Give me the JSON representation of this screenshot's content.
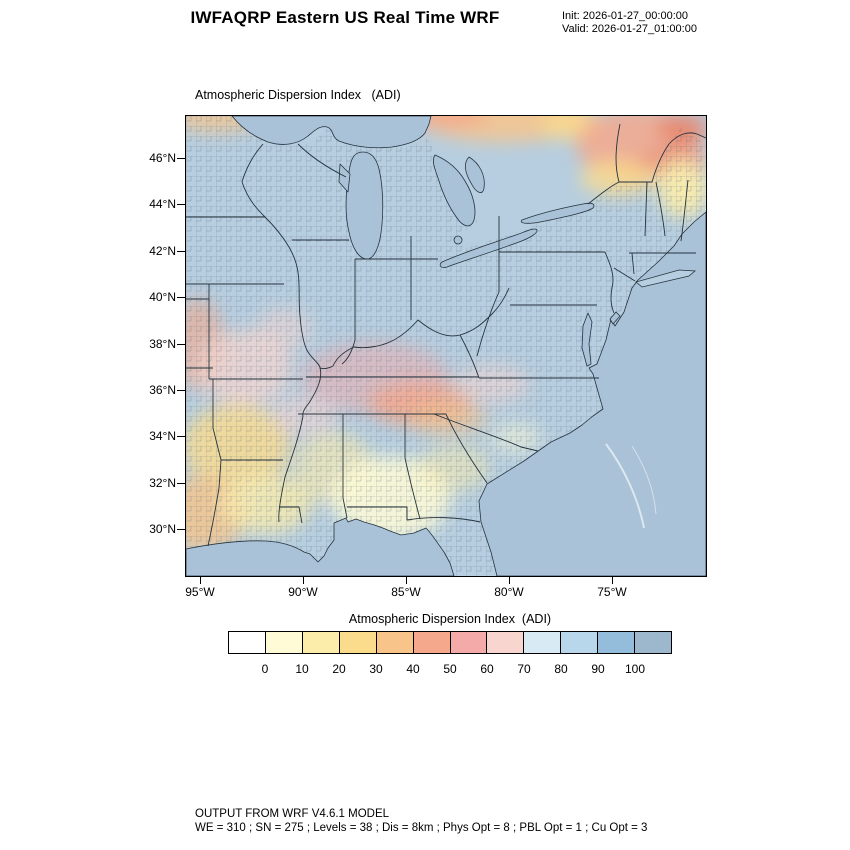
{
  "header": {
    "title": "IWFAQRP Eastern US Real Time WRF",
    "init_line": "Init: 2026-01-27_00:00:00",
    "valid_line": "Valid: 2026-01-27_01:00:00"
  },
  "map": {
    "subtitle": "Atmospheric Dispersion Index   (ADI)",
    "lat_labels": [
      "46°N",
      "44°N",
      "42°N",
      "40°N",
      "38°N",
      "36°N",
      "34°N",
      "32°N",
      "30°N"
    ],
    "lon_labels": [
      "95°W",
      "90°W",
      "85°W",
      "80°W",
      "75°W"
    ],
    "ocean_color": "#a9c2d8",
    "land_color": "#b6cee0",
    "boundary_color": "#25333e",
    "hot_spot_color": "#e8846b"
  },
  "colorbar": {
    "title": "Atmospheric Dispersion Index  (ADI)",
    "tick_labels": [
      "0",
      "10",
      "20",
      "30",
      "40",
      "50",
      "60",
      "70",
      "80",
      "90",
      "100"
    ],
    "colors": [
      "#ffffff",
      "#fffbd6",
      "#fdedaa",
      "#fbdc8d",
      "#f8c489",
      "#f5a88b",
      "#f3aaa8",
      "#f8d6cf",
      "#d8eaf4",
      "#b9d7eb",
      "#93bddb",
      "#9db8cd"
    ]
  },
  "footer": {
    "line1": "OUTPUT FROM WRF V4.6.1 MODEL",
    "line2": "WE = 310 ; SN = 275 ; Levels = 38 ; Dis = 8km ; Phys Opt = 8 ; PBL Opt = 1 ; Cu Opt = 3"
  }
}
